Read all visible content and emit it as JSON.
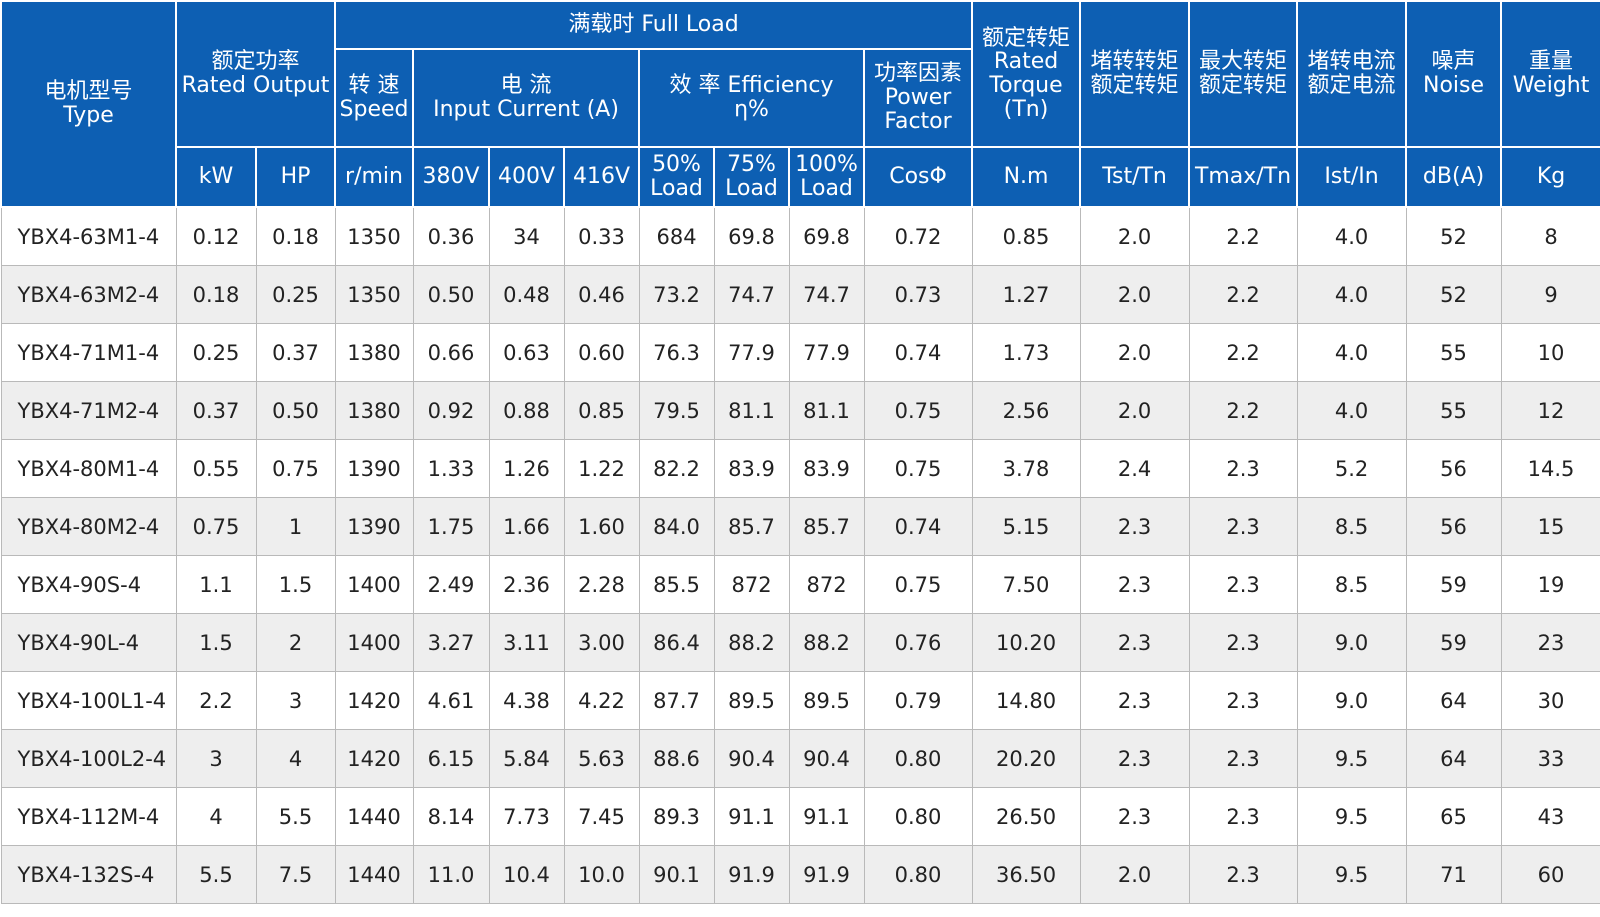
{
  "header": {
    "type_cn": "电机型号",
    "type_en": "Type",
    "rated_output_cn": "额定功率",
    "rated_output_en": "Rated Output",
    "full_load": "满载时  Full Load",
    "speed_cn": "转 速",
    "speed_en": "Speed",
    "current_cn": "电 流",
    "current_en": "Input Current (A)",
    "efficiency_label": "效 率 Efficiency",
    "efficiency_unit": "η%",
    "pf_cn": "功率因素",
    "pf_en1": "Power",
    "pf_en2": "Factor",
    "torque_cn": "额定转矩",
    "torque_en1": "Rated",
    "torque_en2": "Torque",
    "torque_en3": "(Tn)",
    "lr_torque_1": "堵转转矩",
    "lr_torque_2": "额定转矩",
    "max_torque_1": "最大转矩",
    "max_torque_2": "额定转矩",
    "lr_current_1": "堵转电流",
    "lr_current_2": "额定电流",
    "noise_cn": "噪声",
    "noise_en": "Noise",
    "weight_cn": "重量",
    "weight_en": "Weight",
    "units": {
      "kw": "kW",
      "hp": "HP",
      "rmin": "r/min",
      "v380": "380V",
      "v400": "400V",
      "v416": "416V",
      "load50_a": "50%",
      "load50_b": "Load",
      "load75_a": "75%",
      "load75_b": "Load",
      "load100_a": "100%",
      "load100_b": "Load",
      "cos": "CosΦ",
      "nm": "N.m",
      "tst": "Tst/Tn",
      "tmax": "Tmax/Tn",
      "ist": "Ist/In",
      "db": "dB(A)",
      "kg": "Kg"
    }
  },
  "rows": [
    [
      "YBX4-63M1-4",
      "0.12",
      "0.18",
      "1350",
      "0.36",
      "34",
      "0.33",
      "684",
      "69.8",
      "69.8",
      "0.72",
      "0.85",
      "2.0",
      "2.2",
      "4.0",
      "52",
      "8"
    ],
    [
      "YBX4-63M2-4",
      "0.18",
      "0.25",
      "1350",
      "0.50",
      "0.48",
      "0.46",
      "73.2",
      "74.7",
      "74.7",
      "0.73",
      "1.27",
      "2.0",
      "2.2",
      "4.0",
      "52",
      "9"
    ],
    [
      "YBX4-71M1-4",
      "0.25",
      "0.37",
      "1380",
      "0.66",
      "0.63",
      "0.60",
      "76.3",
      "77.9",
      "77.9",
      "0.74",
      "1.73",
      "2.0",
      "2.2",
      "4.0",
      "55",
      "10"
    ],
    [
      "YBX4-71M2-4",
      "0.37",
      "0.50",
      "1380",
      "0.92",
      "0.88",
      "0.85",
      "79.5",
      "81.1",
      "81.1",
      "0.75",
      "2.56",
      "2.0",
      "2.2",
      "4.0",
      "55",
      "12"
    ],
    [
      "YBX4-80M1-4",
      "0.55",
      "0.75",
      "1390",
      "1.33",
      "1.26",
      "1.22",
      "82.2",
      "83.9",
      "83.9",
      "0.75",
      "3.78",
      "2.4",
      "2.3",
      "5.2",
      "56",
      "14.5"
    ],
    [
      "YBX4-80M2-4",
      "0.75",
      "1",
      "1390",
      "1.75",
      "1.66",
      "1.60",
      "84.0",
      "85.7",
      "85.7",
      "0.74",
      "5.15",
      "2.3",
      "2.3",
      "8.5",
      "56",
      "15"
    ],
    [
      "YBX4-90S-4",
      "1.1",
      "1.5",
      "1400",
      "2.49",
      "2.36",
      "2.28",
      "85.5",
      "872",
      "872",
      "0.75",
      "7.50",
      "2.3",
      "2.3",
      "8.5",
      "59",
      "19"
    ],
    [
      "YBX4-90L-4",
      "1.5",
      "2",
      "1400",
      "3.27",
      "3.11",
      "3.00",
      "86.4",
      "88.2",
      "88.2",
      "0.76",
      "10.20",
      "2.3",
      "2.3",
      "9.0",
      "59",
      "23"
    ],
    [
      "YBX4-100L1-4",
      "2.2",
      "3",
      "1420",
      "4.61",
      "4.38",
      "4.22",
      "87.7",
      "89.5",
      "89.5",
      "0.79",
      "14.80",
      "2.3",
      "2.3",
      "9.0",
      "64",
      "30"
    ],
    [
      "YBX4-100L2-4",
      "3",
      "4",
      "1420",
      "6.15",
      "5.84",
      "5.63",
      "88.6",
      "90.4",
      "90.4",
      "0.80",
      "20.20",
      "2.3",
      "2.3",
      "9.5",
      "64",
      "33"
    ],
    [
      "YBX4-112M-4",
      "4",
      "5.5",
      "1440",
      "8.14",
      "7.73",
      "7.45",
      "89.3",
      "91.1",
      "91.1",
      "0.80",
      "26.50",
      "2.3",
      "2.3",
      "9.5",
      "65",
      "43"
    ],
    [
      "YBX4-132S-4",
      "5.5",
      "7.5",
      "1440",
      "11.0",
      "10.4",
      "10.0",
      "90.1",
      "91.9",
      "91.9",
      "0.80",
      "36.50",
      "2.0",
      "2.3",
      "9.5",
      "71",
      "60"
    ]
  ],
  "colors": {
    "header_bg": "#0d5fb3",
    "header_text": "#ffffff",
    "row_alt": "#eeeeee",
    "grid": "#b9b9b9"
  }
}
